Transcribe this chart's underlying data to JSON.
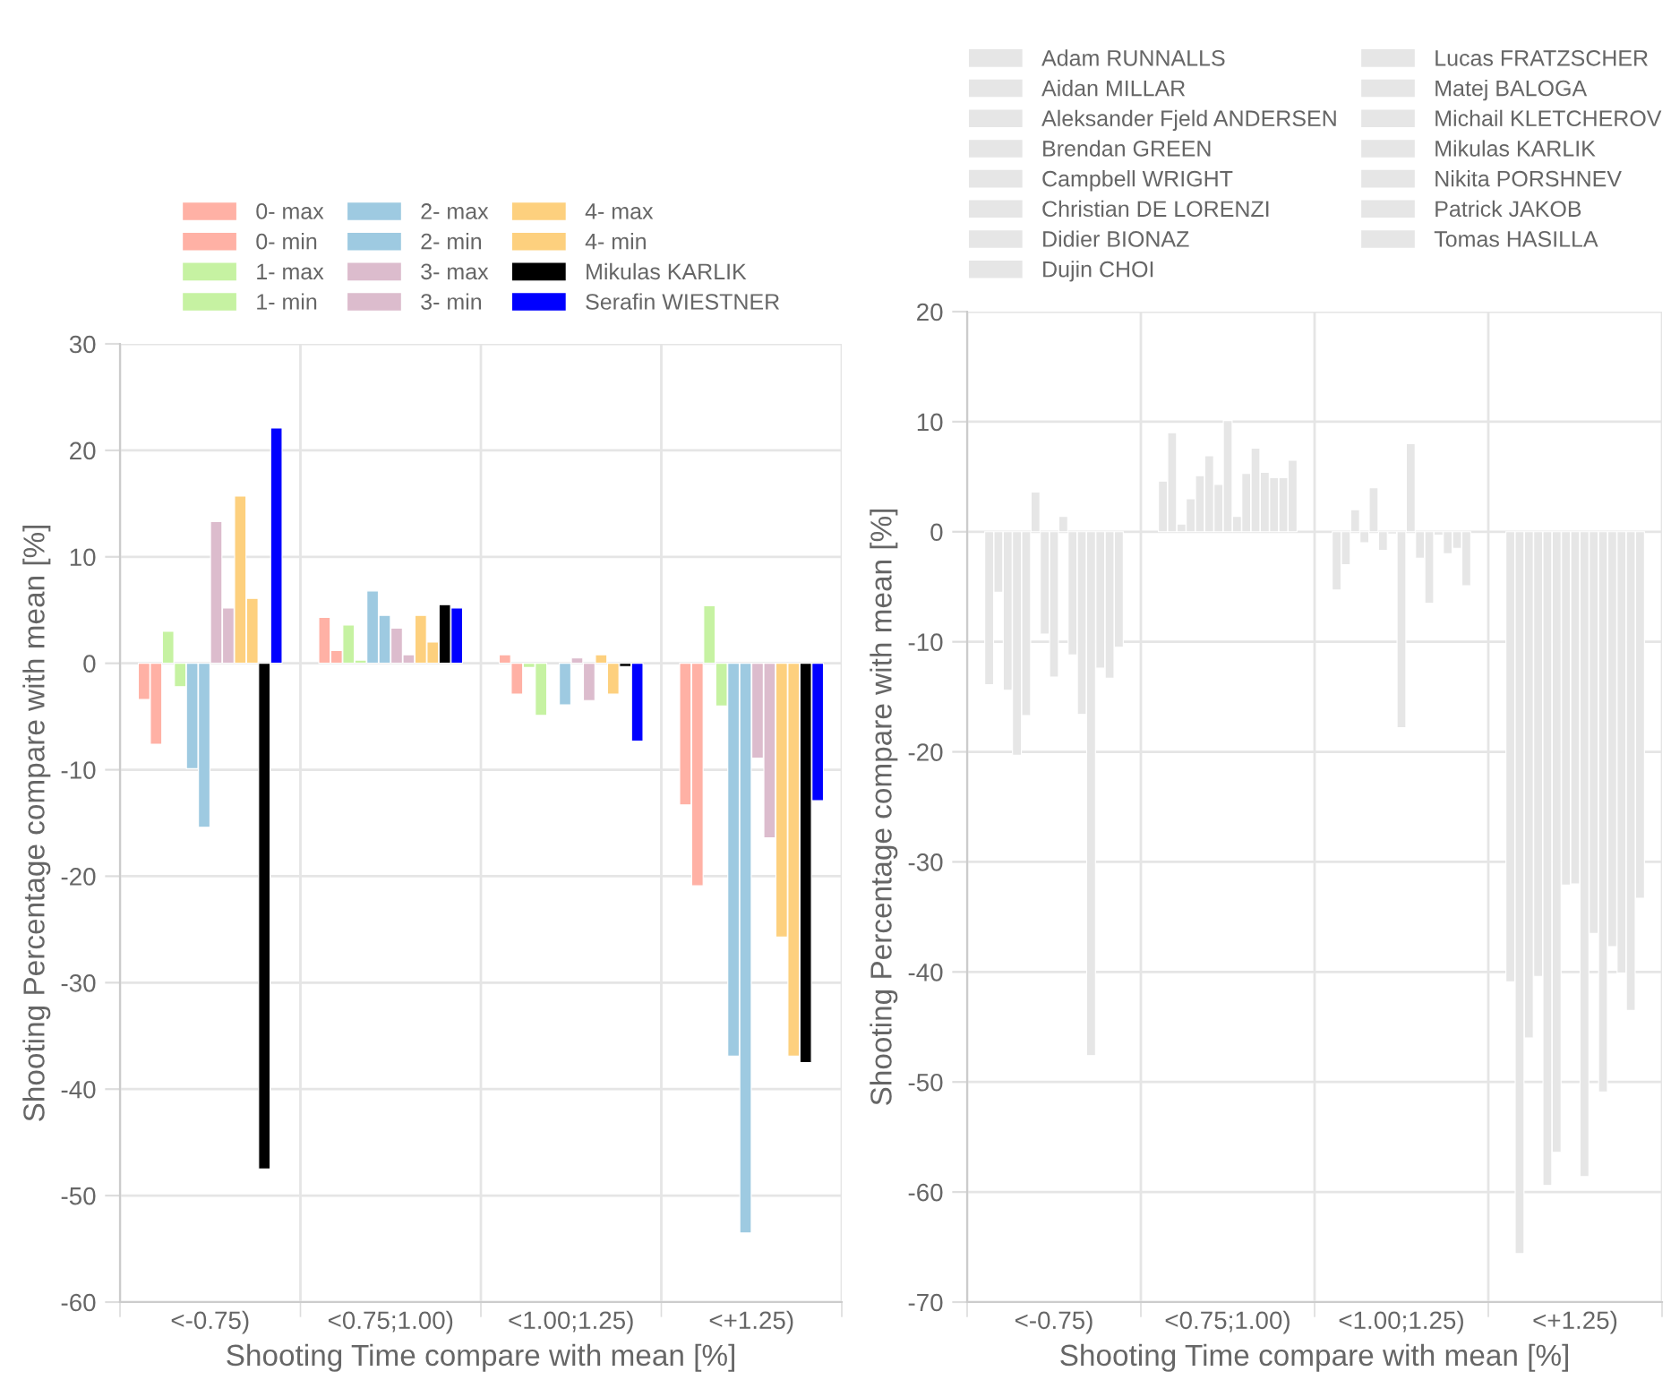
{
  "chart_data": [
    {
      "type": "bar",
      "xlabel": "Shooting Time compare with mean [%]",
      "ylabel": "Shooting Percentage compare with mean [%]",
      "categories": [
        "<-0.75)",
        "<0.75;1.00)",
        "<1.00;1.25)",
        "<+1.25)"
      ],
      "ylim": [
        -60,
        30
      ],
      "yticks": [
        -60,
        -50,
        -40,
        -30,
        -20,
        -10,
        0,
        10,
        20,
        30
      ],
      "grid": true,
      "legend": "top",
      "series": [
        {
          "name": "0- max",
          "color": "#ffb1a5",
          "values": [
            -3.4,
            4.3,
            0.8,
            -13.3
          ]
        },
        {
          "name": "0- min",
          "color": "#ffb1a5",
          "values": [
            -7.6,
            1.2,
            -2.9,
            -20.9
          ]
        },
        {
          "name": "1- max",
          "color": "#c6f2a2",
          "values": [
            3.0,
            3.6,
            -0.4,
            5.4
          ]
        },
        {
          "name": "1- min",
          "color": "#c6f2a2",
          "values": [
            -2.2,
            0.3,
            -4.9,
            -4.0
          ]
        },
        {
          "name": "2- max",
          "color": "#9ecae1",
          "values": [
            -9.9,
            6.8,
            null,
            -36.9
          ]
        },
        {
          "name": "2- min",
          "color": "#9ecae1",
          "values": [
            -15.4,
            4.5,
            -3.9,
            -53.5
          ]
        },
        {
          "name": "3- max",
          "color": "#dcbccd",
          "values": [
            13.3,
            3.3,
            0.5,
            -8.9
          ]
        },
        {
          "name": "3- min",
          "color": "#dcbccd",
          "values": [
            5.2,
            0.8,
            -3.5,
            -16.4
          ]
        },
        {
          "name": "4- max",
          "color": "#fdd07e",
          "values": [
            15.7,
            4.5,
            0.8,
            -25.7
          ]
        },
        {
          "name": "4- min",
          "color": "#fdd07e",
          "values": [
            6.1,
            2.0,
            -2.9,
            -36.9
          ]
        },
        {
          "name": "Mikulas KARLIK",
          "color": "#000000",
          "values": [
            -47.5,
            5.5,
            -0.3,
            -37.5
          ]
        },
        {
          "name": "Serafin WIESTNER",
          "color": "#0000ff",
          "values": [
            22.1,
            5.2,
            -7.3,
            -12.9
          ]
        }
      ]
    },
    {
      "type": "bar",
      "xlabel": "Shooting Time compare with mean [%]",
      "ylabel": "Shooting Percentage compare with mean [%]",
      "categories": [
        "<-0.75)",
        "<0.75;1.00)",
        "<1.00;1.25)",
        "<+1.25)"
      ],
      "ylim": [
        -70,
        20
      ],
      "yticks": [
        -70,
        -60,
        -50,
        -40,
        -30,
        -20,
        -10,
        0,
        10,
        20
      ],
      "grid": true,
      "legend": "top",
      "series": [
        {
          "name": "Adam RUNNALLS",
          "color": "#e6e6e6",
          "values": [
            -13.9,
            4.6,
            -5.3,
            -40.9
          ]
        },
        {
          "name": "Aidan MILLAR",
          "color": "#e6e6e6",
          "values": [
            -5.5,
            9.0,
            -3.0,
            -65.6
          ]
        },
        {
          "name": "Aleksander Fjeld ANDERSEN",
          "color": "#e6e6e6",
          "values": [
            -14.4,
            0.7,
            2.0,
            -46.0
          ]
        },
        {
          "name": "Brendan GREEN",
          "color": "#e6e6e6",
          "values": [
            -20.3,
            3.0,
            -1.0,
            -40.4
          ]
        },
        {
          "name": "Campbell WRIGHT",
          "color": "#e6e6e6",
          "values": [
            -16.7,
            5.1,
            4.0,
            -59.4
          ]
        },
        {
          "name": "Christian DE LORENZI",
          "color": "#e6e6e6",
          "values": [
            3.6,
            6.9,
            -1.7,
            -56.4
          ]
        },
        {
          "name": "Didier BIONAZ",
          "color": "#e6e6e6",
          "values": [
            -9.3,
            4.3,
            -0.2,
            -32.1
          ]
        },
        {
          "name": "Dujin CHOI",
          "color": "#e6e6e6",
          "values": [
            -13.2,
            10.1,
            -17.8,
            -32.0
          ]
        },
        {
          "name": "Lucas FRATZSCHER",
          "color": "#e6e6e6",
          "values": [
            1.4,
            1.4,
            8.0,
            -58.6
          ]
        },
        {
          "name": "Matej BALOGA",
          "color": "#e6e6e6",
          "values": [
            -11.2,
            5.3,
            -2.4,
            -36.5
          ]
        },
        {
          "name": "Michail KLETCHEROV",
          "color": "#e6e6e6",
          "values": [
            -16.6,
            7.6,
            -6.5,
            -50.9
          ]
        },
        {
          "name": "Mikulas KARLIK",
          "color": "#e6e6e6",
          "values": [
            -47.6,
            5.4,
            -0.3,
            -37.7
          ]
        },
        {
          "name": "Nikita PORSHNEV",
          "color": "#e6e6e6",
          "values": [
            -12.4,
            4.9,
            -2.0,
            -40.1
          ]
        },
        {
          "name": "Patrick JAKOB",
          "color": "#e6e6e6",
          "values": [
            -13.3,
            4.9,
            -1.5,
            -43.5
          ]
        },
        {
          "name": "Tomas HASILLA",
          "color": "#e6e6e6",
          "values": [
            -10.5,
            6.5,
            -4.9,
            -33.3
          ]
        }
      ]
    }
  ]
}
